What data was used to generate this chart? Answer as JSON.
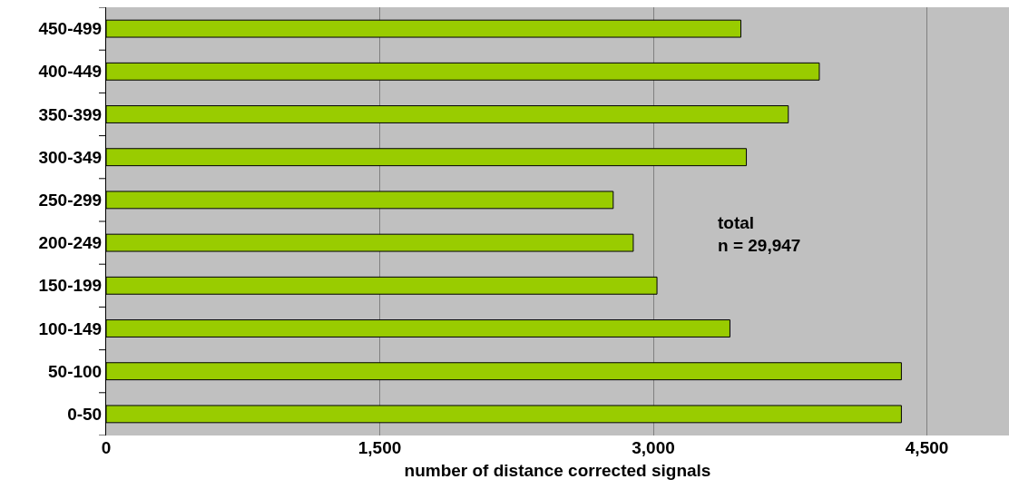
{
  "chart_data": {
    "type": "bar",
    "orientation": "horizontal",
    "xlabel": "number of distance corrected signals",
    "categories": [
      "450-499",
      "400-449",
      "350-399",
      "300-349",
      "250-299",
      "200-249",
      "150-199",
      "100-149",
      "50-100",
      "0-50"
    ],
    "values": [
      3480,
      3910,
      3740,
      3510,
      2780,
      2890,
      3020,
      3420,
      4360,
      4360
    ],
    "color": "#99cc00",
    "xlim": [
      0,
      4950
    ],
    "xticks": [
      {
        "value": 0,
        "label": "0"
      },
      {
        "value": 1500,
        "label": "1,500"
      },
      {
        "value": 3000,
        "label": "3,000"
      },
      {
        "value": 4500,
        "label": "4,500"
      }
    ],
    "grid": "x",
    "annotations": [
      "total\nn = 29,947"
    ]
  }
}
